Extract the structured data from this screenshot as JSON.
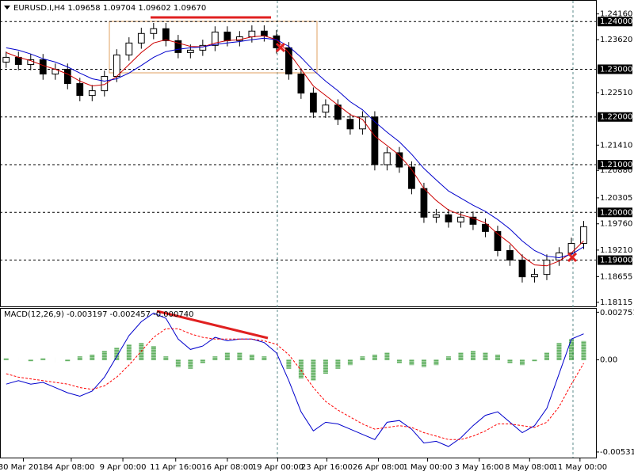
{
  "chart_data": [
    {
      "type": "candlestick",
      "title": "EURUSD.I,H4  1.09658 1.09704 1.09602 1.09670",
      "ylim": [
        1.1803,
        1.24435
      ],
      "xlim": [
        -0.5,
        48
      ],
      "open": [
        1.2315,
        1.2325,
        1.231,
        1.232,
        1.229,
        1.23,
        1.227,
        1.2245,
        1.2255,
        1.2285,
        1.233,
        1.2355,
        1.2375,
        1.2385,
        1.236,
        1.2335,
        1.234,
        1.235,
        1.2378,
        1.236,
        1.2368,
        1.238,
        1.237,
        1.2345,
        1.229,
        1.225,
        1.221,
        1.2225,
        1.2195,
        1.2175,
        1.22,
        1.21,
        1.2125,
        1.2095,
        1.205,
        1.199,
        1.1995,
        1.198,
        1.199,
        1.1975,
        1.196,
        1.192,
        1.19,
        1.1865,
        1.187,
        1.19,
        1.1915,
        1.1935
      ],
      "high": [
        1.2337,
        1.2337,
        1.2332,
        1.2332,
        1.2312,
        1.2312,
        1.2282,
        1.2267,
        1.2297,
        1.2342,
        1.2367,
        1.2387,
        1.2397,
        1.2397,
        1.2372,
        1.2352,
        1.2362,
        1.239,
        1.239,
        1.238,
        1.2392,
        1.2392,
        1.2382,
        1.2357,
        1.2302,
        1.2262,
        1.2237,
        1.2237,
        1.2207,
        1.2212,
        1.2212,
        1.2137,
        1.2137,
        1.2107,
        1.2062,
        1.2007,
        1.2007,
        1.2002,
        1.2002,
        1.1987,
        1.1972,
        1.1932,
        1.1912,
        1.1882,
        1.1912,
        1.1927,
        1.1947,
        1.1982
      ],
      "low": [
        1.2303,
        1.2298,
        1.2298,
        1.2278,
        1.2278,
        1.2258,
        1.2233,
        1.2233,
        1.2243,
        1.2273,
        1.2318,
        1.2343,
        1.2363,
        1.2348,
        1.2323,
        1.2323,
        1.2328,
        1.2338,
        1.2348,
        1.2348,
        1.2356,
        1.2358,
        1.2333,
        1.2278,
        1.2238,
        1.2198,
        1.2198,
        1.2183,
        1.2163,
        1.2163,
        1.2088,
        1.2088,
        1.2083,
        1.2038,
        1.1978,
        1.1978,
        1.1968,
        1.1968,
        1.1963,
        1.1948,
        1.1908,
        1.1888,
        1.1853,
        1.1853,
        1.1858,
        1.1888,
        1.1903,
        1.1923
      ],
      "close": [
        1.2325,
        1.231,
        1.232,
        1.229,
        1.23,
        1.227,
        1.2245,
        1.2255,
        1.2285,
        1.233,
        1.2355,
        1.2375,
        1.2385,
        1.236,
        1.2335,
        1.234,
        1.235,
        1.2378,
        1.236,
        1.2368,
        1.238,
        1.237,
        1.2345,
        1.229,
        1.225,
        1.221,
        1.2225,
        1.2195,
        1.2175,
        1.22,
        1.21,
        1.2125,
        1.2095,
        1.205,
        1.199,
        1.1995,
        1.198,
        1.199,
        1.1975,
        1.196,
        1.192,
        1.19,
        1.1865,
        1.187,
        1.19,
        1.1915,
        1.1935,
        1.197
      ],
      "series": [
        {
          "color": "#cc0000",
          "values": [
            1.2335,
            1.2325,
            1.2318,
            1.2308,
            1.23,
            1.229,
            1.2275,
            1.2265,
            1.2268,
            1.2285,
            1.231,
            1.2335,
            1.2355,
            1.2362,
            1.2355,
            1.2348,
            1.2347,
            1.2355,
            1.236,
            1.2362,
            1.2368,
            1.237,
            1.2362,
            1.2335,
            1.23,
            1.2265,
            1.2245,
            1.2225,
            1.2205,
            1.2195,
            1.216,
            1.214,
            1.212,
            1.209,
            1.205,
            1.2025,
            1.2005,
            1.1995,
            1.1988,
            1.1978,
            1.1955,
            1.1935,
            1.1908,
            1.189,
            1.1888,
            1.1898,
            1.1915,
            1.194
          ]
        },
        {
          "color": "#0000cc",
          "values": [
            1.2345,
            1.234,
            1.2332,
            1.2322,
            1.2315,
            1.2305,
            1.2292,
            1.228,
            1.2275,
            1.228,
            1.2292,
            1.2308,
            1.2325,
            1.2337,
            1.2342,
            1.2345,
            1.2347,
            1.2352,
            1.2355,
            1.2358,
            1.2362,
            1.2365,
            1.2362,
            1.2348,
            1.2325,
            1.2298,
            1.2275,
            1.2255,
            1.2232,
            1.2215,
            1.219,
            1.2168,
            1.2148,
            1.2122,
            1.2092,
            1.2068,
            1.2045,
            1.203,
            1.2015,
            1.2002,
            1.1985,
            1.1965,
            1.194,
            1.192,
            1.1908,
            1.1905,
            1.1912,
            1.1928
          ]
        }
      ],
      "yticks": [
        {
          "value": 1.2416,
          "label": "1.24160"
        },
        {
          "value": 1.2362,
          "label": "1.23620"
        },
        {
          "value": 1.2251,
          "label": "1.22510"
        },
        {
          "value": 1.2141,
          "label": "1.21410"
        },
        {
          "value": 1.2088,
          "label": "1.20880"
        },
        {
          "value": 1.20305,
          "label": "1.20305"
        },
        {
          "value": 1.1976,
          "label": "1.19760"
        },
        {
          "value": 1.1921,
          "label": "1.19210"
        },
        {
          "value": 1.18655,
          "label": "1.18655"
        },
        {
          "value": 1.18115,
          "label": "1.18115"
        }
      ],
      "levels": [
        {
          "value": 1.24,
          "label": "1.24000"
        },
        {
          "value": 1.23,
          "label": "1.23000"
        },
        {
          "value": 1.22,
          "label": "1.22000"
        },
        {
          "value": 1.21,
          "label": "1.21000"
        },
        {
          "value": 1.2,
          "label": "1.20000"
        },
        {
          "value": 1.19,
          "label": "1.19000"
        }
      ]
    },
    {
      "type": "macd",
      "title": "MACD(12,26,9) -0.003197 -0.002457 -0.000740",
      "ylim": [
        -0.00564,
        0.00295
      ],
      "xlim": [
        -0.5,
        48
      ],
      "histogram": [
        0.0001,
        0.0,
        -0.0001,
        0.0001,
        0.0,
        -0.0001,
        0.0002,
        0.0003,
        0.0005,
        0.0007,
        0.0009,
        0.001,
        0.0008,
        0.0002,
        -0.0004,
        -0.0005,
        -0.0002,
        0.0002,
        0.0004,
        0.0004,
        0.0003,
        0.0002,
        0.0,
        -0.0005,
        -0.0011,
        -0.0012,
        -0.0008,
        -0.0005,
        -0.0003,
        0.0002,
        0.0003,
        0.0004,
        -0.0002,
        -0.0003,
        -0.0004,
        -0.0003,
        0.0002,
        0.0004,
        0.0005,
        0.0004,
        0.0003,
        -0.0002,
        -0.0003,
        -0.0001,
        0.0004,
        0.001,
        0.0012,
        0.0011
      ],
      "histogram_color": "#008000",
      "series": [
        {
          "color": "#0000cc",
          "dashed": false,
          "values": [
            -0.0014,
            -0.0012,
            -0.0014,
            -0.0013,
            -0.0016,
            -0.0019,
            -0.0021,
            -0.0018,
            -0.001,
            0.0002,
            0.0014,
            0.0022,
            0.0027,
            0.0024,
            0.0012,
            0.0006,
            0.0008,
            0.0013,
            0.0011,
            0.0012,
            0.0012,
            0.001,
            0.0004,
            -0.0012,
            -0.003,
            -0.0041,
            -0.0036,
            -0.0037,
            -0.004,
            -0.0043,
            -0.0046,
            -0.0036,
            -0.0035,
            -0.004,
            -0.0048,
            -0.0047,
            -0.005,
            -0.0045,
            -0.0038,
            -0.0032,
            -0.003,
            -0.0036,
            -0.0042,
            -0.0038,
            -0.0028,
            -0.0008,
            0.0012,
            0.0015
          ]
        },
        {
          "color": "#ff0000",
          "dashed": true,
          "values": [
            -0.0008,
            -0.001,
            -0.0011,
            -0.0012,
            -0.0013,
            -0.0014,
            -0.0016,
            -0.0017,
            -0.0015,
            -0.001,
            -0.0003,
            0.0005,
            0.0013,
            0.0018,
            0.0018,
            0.0015,
            0.0013,
            0.0012,
            0.0012,
            0.0012,
            0.0012,
            0.0011,
            0.0009,
            0.0003,
            -0.0006,
            -0.0016,
            -0.0024,
            -0.0029,
            -0.0033,
            -0.0037,
            -0.004,
            -0.0039,
            -0.0038,
            -0.0039,
            -0.0042,
            -0.0044,
            -0.0046,
            -0.0046,
            -0.0044,
            -0.0041,
            -0.0037,
            -0.0037,
            -0.0038,
            -0.0039,
            -0.0036,
            -0.0027,
            -0.0014,
            -0.0002
          ]
        }
      ],
      "yticks": [
        0.002751,
        {
          "value": 0,
          "label": "0.00"
        },
        -0.005318
      ],
      "xticks": [
        {
          "value": 1.4,
          "label": "30 Mar 2018"
        },
        {
          "value": 5.3,
          "label": "4 Apr 08:00"
        },
        {
          "value": 9.5,
          "label": "9 Apr 00:00"
        },
        {
          "value": 13.8,
          "label": "11 Apr 16:00"
        },
        {
          "value": 18,
          "label": "16 Apr 08:00"
        },
        {
          "value": 22.1,
          "label": "19 Apr 00:00"
        },
        {
          "value": 26.1,
          "label": "23 Apr 16:00"
        },
        {
          "value": 30.3,
          "label": "26 Apr 08:00"
        },
        {
          "value": 34.3,
          "label": "1 May 00:00"
        },
        {
          "value": 38.5,
          "label": "3 May 16:00"
        },
        {
          "value": 42.6,
          "label": "8 May 08:00"
        },
        {
          "value": 46.7,
          "label": "11 May 00:00"
        }
      ]
    }
  ]
}
